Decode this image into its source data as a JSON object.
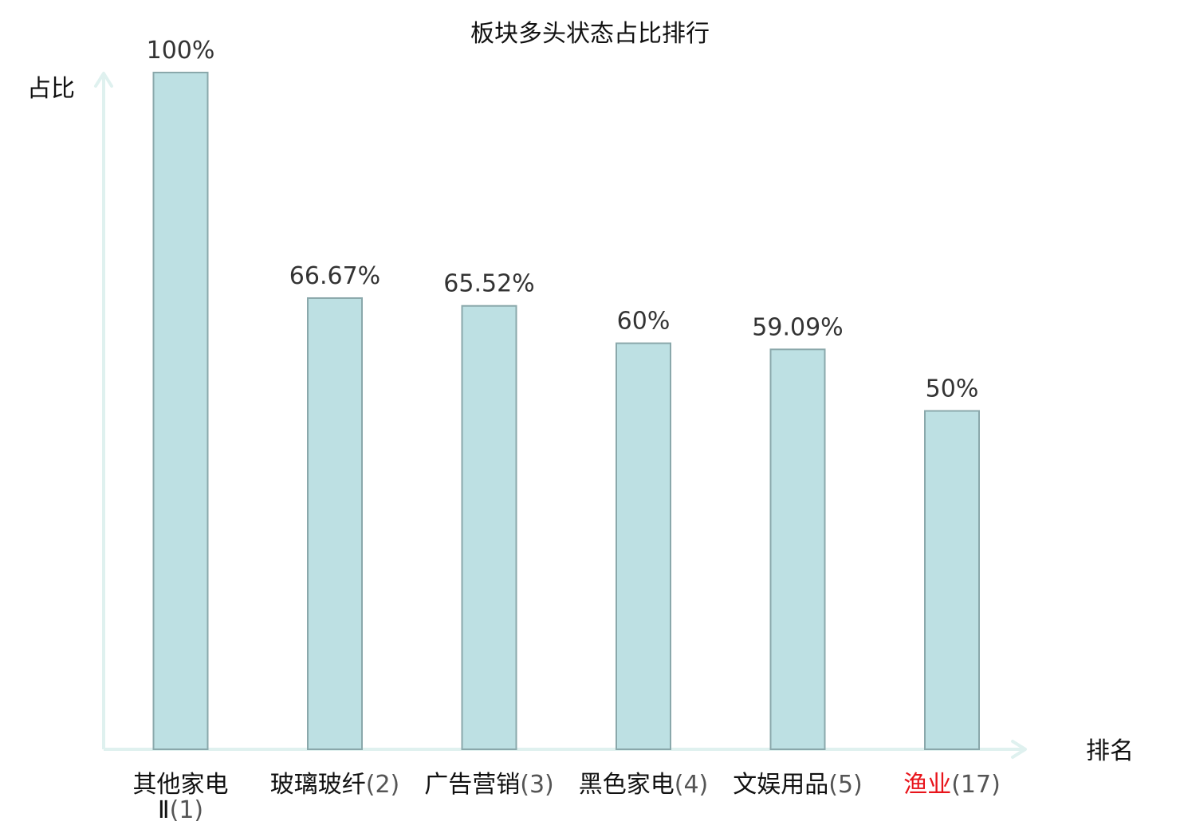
{
  "chart_data": {
    "type": "bar",
    "title": "板块多头状态占比排行",
    "xlabel": "排名",
    "ylabel": "占比",
    "ylim": [
      0,
      100
    ],
    "grid": false,
    "legend": "none",
    "categories": [
      {
        "name_lines": [
          "其他家电",
          "Ⅱ"
        ],
        "rank": "(1)",
        "highlight": false
      },
      {
        "name_lines": [
          "玻璃玻纤"
        ],
        "rank": "(2)",
        "highlight": false
      },
      {
        "name_lines": [
          "广告营销"
        ],
        "rank": "(3)",
        "highlight": false
      },
      {
        "name_lines": [
          "黑色家电"
        ],
        "rank": "(4)",
        "highlight": false
      },
      {
        "name_lines": [
          "文娱用品"
        ],
        "rank": "(5)",
        "highlight": false
      },
      {
        "name_lines": [
          "渔业"
        ],
        "rank": "(17)",
        "highlight": true
      }
    ],
    "values": [
      100,
      66.67,
      65.52,
      60,
      59.09,
      50
    ],
    "value_labels": [
      "100%",
      "66.67%",
      "65.52%",
      "60%",
      "59.09%",
      "50%"
    ],
    "colors": {
      "bar_fill": "#bde0e3",
      "bar_stroke": "#8aa8ab",
      "axis": "#dff1ef",
      "highlight_text": "#e8141b",
      "text": "#111111",
      "value_text": "#333333"
    }
  }
}
